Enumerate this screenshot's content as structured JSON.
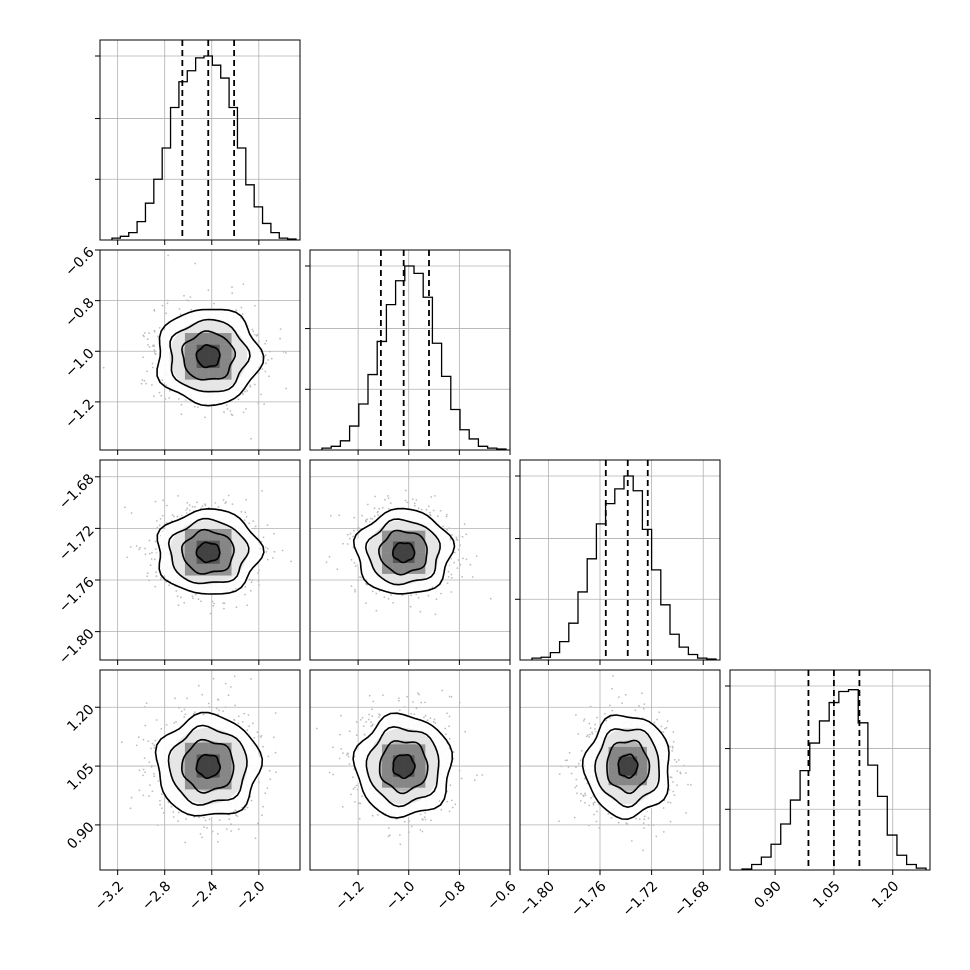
{
  "chart_data": {
    "type": "corner",
    "title": "",
    "parameters": [
      {
        "name": "",
        "range": [
          -3.35,
          -1.65
        ],
        "ticks": [
          "-3.2",
          "-2.8",
          "-2.4",
          "-2.0"
        ],
        "tick_values": [
          -3.2,
          -2.8,
          -2.4,
          -2.0
        ],
        "quantiles": [
          -2.65,
          -2.43,
          -2.21
        ],
        "mean": -2.43,
        "sd": 0.22
      },
      {
        "name": "",
        "range": [
          -1.39,
          -0.6
        ],
        "ticks": [
          "-1.2",
          "-1.0",
          "-0.8",
          "-0.6"
        ],
        "tick_values": [
          -1.2,
          -1.0,
          -0.8,
          -0.6
        ],
        "quantiles": [
          -1.11,
          -1.02,
          -0.92
        ],
        "mean": -1.02,
        "sd": 0.095
      },
      {
        "name": "",
        "range": [
          -1.822,
          -1.667
        ],
        "ticks": [
          "-1.80",
          "-1.76",
          "-1.72",
          "-1.68"
        ],
        "tick_values": [
          -1.8,
          -1.76,
          -1.72,
          -1.68
        ],
        "quantiles": [
          -1.7555,
          -1.7385,
          -1.723
        ],
        "mean": -1.7385,
        "sd": 0.0165
      },
      {
        "name": "",
        "range": [
          0.785,
          1.295
        ],
        "ticks": [
          "0.90",
          "1.05",
          "1.20"
        ],
        "tick_values": [
          0.9,
          1.05,
          1.2
        ],
        "quantiles": [
          0.985,
          1.05,
          1.115
        ],
        "mean": 1.05,
        "sd": 0.065
      }
    ],
    "histograms": [
      [
        0.01,
        0.02,
        0.04,
        0.1,
        0.2,
        0.33,
        0.5,
        0.72,
        0.86,
        0.92,
        0.99,
        1.0,
        0.95,
        0.88,
        0.72,
        0.5,
        0.3,
        0.18,
        0.09,
        0.04,
        0.01,
        0.005
      ],
      [
        0.01,
        0.02,
        0.05,
        0.13,
        0.25,
        0.41,
        0.59,
        0.79,
        0.92,
        1.0,
        0.96,
        0.83,
        0.58,
        0.4,
        0.22,
        0.11,
        0.06,
        0.02,
        0.01,
        0.005
      ],
      [
        0.01,
        0.015,
        0.04,
        0.1,
        0.2,
        0.37,
        0.55,
        0.74,
        0.85,
        0.93,
        1.0,
        0.92,
        0.71,
        0.49,
        0.3,
        0.14,
        0.07,
        0.03,
        0.01,
        0.005
      ],
      [
        0.005,
        0.03,
        0.07,
        0.14,
        0.25,
        0.38,
        0.54,
        0.69,
        0.81,
        0.91,
        0.97,
        0.98,
        0.8,
        0.57,
        0.4,
        0.19,
        0.08,
        0.03,
        0.01
      ]
    ],
    "contour_levels_sigma": [
      0.5,
      1.0,
      1.5,
      2.0
    ],
    "quantile_style": "dashed",
    "grid": true
  }
}
